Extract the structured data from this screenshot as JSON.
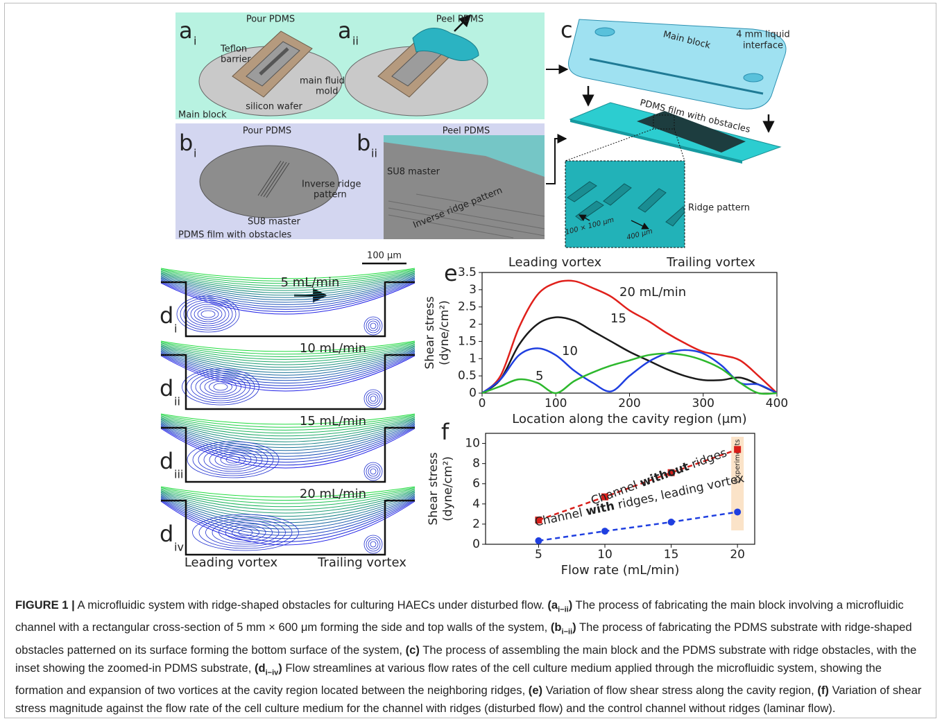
{
  "panel_a": {
    "label_i": "a",
    "sub_i": "i",
    "label_ii": "a",
    "sub_ii": "ii",
    "pour": "Pour PDMS",
    "peel": "Peel PDMS",
    "teflon": [
      "Teflon",
      "barrier"
    ],
    "mold": [
      "main fluid",
      "mold"
    ],
    "wafer": "silicon wafer",
    "name": "Main block"
  },
  "panel_b": {
    "label_i": "b",
    "sub_i": "i",
    "label_ii": "b",
    "sub_ii": "ii",
    "pour": "Pour PDMS",
    "peel": "Peel PDMS",
    "ridge_i": [
      "Inverse ridge",
      "pattern"
    ],
    "master_i": "SU8 master",
    "name": "PDMS film with obstacles",
    "master_ii": "SU8 master",
    "ridge_ii": "Inverse ridge pattern"
  },
  "panel_c": {
    "label": "c",
    "block": "Main block",
    "interface": [
      "4 mm liquid",
      "interface"
    ],
    "film": "PDMS film with obstacles",
    "ridge": "Ridge pattern",
    "size": "100 × 100 μm",
    "spacing": "400 μm"
  },
  "panel_d": {
    "scale": "100 μm",
    "rows": [
      {
        "label": "d",
        "sub": "i",
        "rate": "5 mL/min"
      },
      {
        "label": "d",
        "sub": "ii",
        "rate": "10 mL/min"
      },
      {
        "label": "d",
        "sub": "iii",
        "rate": "15 mL/min"
      },
      {
        "label": "d",
        "sub": "iv",
        "rate": "20 mL/min"
      }
    ],
    "leading": "Leading vortex",
    "trailing": "Trailing vortex"
  },
  "chart_data": [
    {
      "type": "line",
      "label": "e",
      "smooth": true,
      "annotations": [
        "Leading vortex",
        "Trailing vortex"
      ],
      "xlabel": "Location along the cavity region (μm)",
      "ylabel": [
        "Shear stress",
        "(dyne/cm²)"
      ],
      "x": [
        0,
        25,
        50,
        75,
        100,
        125,
        150,
        175,
        200,
        225,
        250,
        275,
        300,
        325,
        350,
        375,
        400
      ],
      "series": [
        {
          "name": "20 mL/min",
          "color": "#e0201b",
          "values": [
            0,
            0.5,
            1.9,
            2.85,
            3.2,
            3.25,
            3.05,
            2.8,
            2.4,
            2.1,
            1.75,
            1.45,
            1.2,
            1.1,
            0.95,
            0.5,
            0
          ]
        },
        {
          "name": "15",
          "color": "#1a1a1a",
          "values": [
            0,
            0.4,
            1.4,
            2.0,
            2.2,
            2.1,
            1.8,
            1.5,
            1.2,
            0.95,
            0.7,
            0.5,
            0.38,
            0.38,
            0.45,
            0.25,
            0
          ]
        },
        {
          "name": "10",
          "color": "#1f3fe0",
          "values": [
            0,
            0.4,
            1.1,
            1.3,
            1.1,
            0.65,
            0.3,
            0.05,
            0.5,
            0.9,
            1.15,
            1.25,
            1.15,
            0.8,
            0.3,
            0.25,
            0
          ]
        },
        {
          "name": "5",
          "color": "#2db82d",
          "values": [
            0,
            0.2,
            0.4,
            0.3,
            0,
            0.35,
            0.6,
            0.8,
            0.95,
            1.1,
            1.15,
            1.1,
            0.95,
            0.7,
            0.3,
            0,
            0
          ]
        }
      ],
      "xlim": [
        0,
        400
      ],
      "ylim": [
        0,
        3.5
      ],
      "xticks": [
        0,
        100,
        200,
        300,
        400
      ],
      "yticks": [
        0,
        0.5,
        1,
        1.5,
        2,
        2.5,
        3,
        3.5
      ]
    },
    {
      "type": "line",
      "label": "f",
      "smooth": false,
      "xlabel": "Flow rate (mL/min)",
      "ylabel": [
        "Shear stress",
        "(dyne/cm²)"
      ],
      "highlight_x": 20,
      "highlight_label": "Experiments",
      "x": [
        5,
        10,
        15,
        20
      ],
      "series": [
        {
          "name": [
            "Channel ",
            "without",
            " ridges"
          ],
          "color": "#d81e1a",
          "marker": "square",
          "dashed": true,
          "values": [
            2.4,
            4.7,
            7.1,
            9.4
          ]
        },
        {
          "name": [
            "Channel ",
            "with",
            " ridges, leading vortex"
          ],
          "color": "#1f3fe0",
          "marker": "circle",
          "dashed": true,
          "values": [
            0.35,
            1.3,
            2.2,
            3.2
          ]
        }
      ],
      "xlim": [
        1,
        21.3
      ],
      "ylim": [
        0,
        11
      ],
      "xticks": [
        5,
        10,
        15,
        20
      ],
      "yticks": [
        0,
        2,
        4,
        6,
        8,
        10
      ]
    }
  ],
  "caption": [
    {
      "style": "bold",
      "text": "FIGURE 1 |"
    },
    {
      "style": "normal",
      "text": " A microfluidic system with ridge-shaped obstacles for culturing HAECs under disturbed flow. "
    },
    {
      "style": "bold",
      "text": "(a"
    },
    {
      "style": "sub",
      "text": "i−ii"
    },
    {
      "style": "bold",
      "text": ")"
    },
    {
      "style": "normal",
      "text": " The process of fabricating the main block involving a microfluidic channel with a rectangular cross-section of 5 mm × 600 μm forming the side and top walls of the system, "
    },
    {
      "style": "bold",
      "text": "(b"
    },
    {
      "style": "sub",
      "text": "i−ii"
    },
    {
      "style": "bold",
      "text": ")"
    },
    {
      "style": "normal",
      "text": " The process of fabricating the PDMS substrate with ridge-shaped obstacles patterned on its surface forming the bottom surface of the system, "
    },
    {
      "style": "bold",
      "text": "(c)"
    },
    {
      "style": "normal",
      "text": " The process of assembling the main block and the PDMS substrate with ridge obstacles, with the inset showing the zoomed-in PDMS substrate, "
    },
    {
      "style": "bold",
      "text": "(d"
    },
    {
      "style": "sub",
      "text": "i−iv"
    },
    {
      "style": "bold",
      "text": ")"
    },
    {
      "style": "normal",
      "text": " Flow streamlines at various flow rates of the cell culture medium applied through the microfluidic system, showing the formation and expansion of two vortices at the cavity region located between the neighboring ridges, "
    },
    {
      "style": "bold",
      "text": "(e)"
    },
    {
      "style": "normal",
      "text": " Variation of flow shear stress along the cavity region, "
    },
    {
      "style": "bold",
      "text": "(f)"
    },
    {
      "style": "normal",
      "text": " Variation of shear stress magnitude against the flow rate of the cell culture medium for the channel with ridges (disturbed flow) and the control channel without ridges (laminar flow)."
    }
  ]
}
